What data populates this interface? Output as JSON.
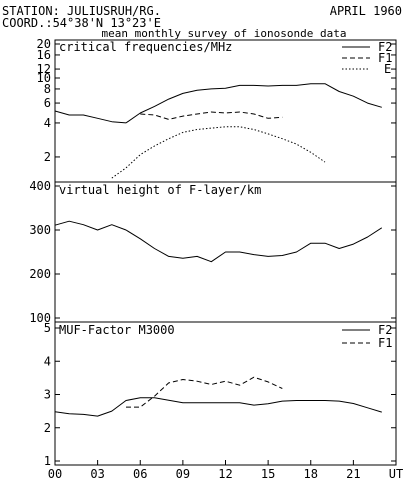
{
  "header": {
    "station": "STATION: JULIUSRUH/RG.",
    "date": "APRIL 1960",
    "coord": "COORD.:54°38'N 13°23'E",
    "subtitle": "mean monthly survey of ionosonde data"
  },
  "x_axis": {
    "tick_labels": [
      "00",
      "03",
      "06",
      "09",
      "12",
      "15",
      "18",
      "21",
      "UT"
    ],
    "tick_hours": [
      0,
      3,
      6,
      9,
      12,
      15,
      18,
      21,
      24
    ],
    "range": [
      0,
      24
    ]
  },
  "chart_data": [
    {
      "type": "line",
      "title": "critical frequencies/MHz",
      "yscale": "log",
      "ylim": [
        1.2,
        20
      ],
      "y_ticks": [
        2,
        4,
        6,
        8,
        10,
        12,
        16,
        20
      ],
      "legend_position": "top-right",
      "series": [
        {
          "name": "F2",
          "style": "solid",
          "x": [
            0,
            1,
            2,
            3,
            4,
            5,
            6,
            7,
            8,
            9,
            10,
            11,
            12,
            13,
            14,
            15,
            16,
            17,
            18,
            19,
            20,
            21,
            22,
            23
          ],
          "y": [
            5.1,
            4.7,
            4.7,
            4.4,
            4.1,
            4.0,
            4.9,
            5.6,
            6.5,
            7.3,
            7.8,
            8.0,
            8.1,
            8.6,
            8.6,
            8.5,
            8.6,
            8.6,
            8.9,
            8.9,
            7.6,
            6.9,
            6.0,
            5.5
          ]
        },
        {
          "name": "F1",
          "style": "dashed",
          "x": [
            6,
            7,
            8,
            9,
            10,
            11,
            12,
            13,
            14,
            15,
            16
          ],
          "y": [
            4.8,
            4.7,
            4.3,
            4.6,
            4.8,
            5.0,
            4.9,
            5.0,
            4.8,
            4.4,
            4.5
          ]
        },
        {
          "name": "E",
          "style": "dotted",
          "x": [
            4,
            5,
            6,
            7,
            8,
            9,
            10,
            11,
            12,
            13,
            14,
            15,
            16,
            17,
            18,
            19
          ],
          "y": [
            1.3,
            1.6,
            2.1,
            2.5,
            2.9,
            3.3,
            3.5,
            3.6,
            3.7,
            3.7,
            3.5,
            3.2,
            2.9,
            2.6,
            2.2,
            1.8
          ]
        }
      ]
    },
    {
      "type": "line",
      "title": "virtual height of F-layer/km",
      "ylim": [
        100,
        400
      ],
      "y_ticks": [
        100,
        200,
        300,
        400
      ],
      "series": [
        {
          "style": "solid",
          "x": [
            0,
            1,
            2,
            3,
            4,
            5,
            6,
            7,
            8,
            9,
            10,
            11,
            12,
            13,
            14,
            15,
            16,
            17,
            18,
            19,
            20,
            21,
            22,
            23
          ],
          "y": [
            311,
            320,
            312,
            300,
            312,
            300,
            280,
            258,
            240,
            236,
            240,
            228,
            250,
            250,
            244,
            240,
            242,
            250,
            270,
            270,
            258,
            268,
            284,
            305
          ]
        }
      ]
    },
    {
      "type": "line",
      "title": "MUF-Factor M3000",
      "ylim": [
        1,
        5
      ],
      "y_ticks": [
        1,
        2,
        3,
        4,
        5
      ],
      "legend_position": "top-right",
      "series": [
        {
          "name": "F2",
          "style": "solid",
          "x": [
            0,
            1,
            2,
            3,
            4,
            5,
            6,
            7,
            8,
            9,
            10,
            11,
            12,
            13,
            14,
            15,
            16,
            17,
            18,
            19,
            20,
            21,
            22,
            23
          ],
          "y": [
            2.48,
            2.42,
            2.4,
            2.35,
            2.5,
            2.82,
            2.9,
            2.9,
            2.83,
            2.75,
            2.75,
            2.75,
            2.75,
            2.75,
            2.68,
            2.72,
            2.8,
            2.82,
            2.82,
            2.82,
            2.8,
            2.73,
            2.6,
            2.47
          ]
        },
        {
          "name": "F1",
          "style": "dashed",
          "x": [
            5,
            6,
            7,
            8,
            9,
            10,
            11,
            12,
            13,
            14,
            15,
            16
          ],
          "y": [
            2.62,
            2.62,
            2.95,
            3.35,
            3.45,
            3.4,
            3.3,
            3.4,
            3.28,
            3.52,
            3.38,
            3.18
          ]
        }
      ]
    }
  ]
}
